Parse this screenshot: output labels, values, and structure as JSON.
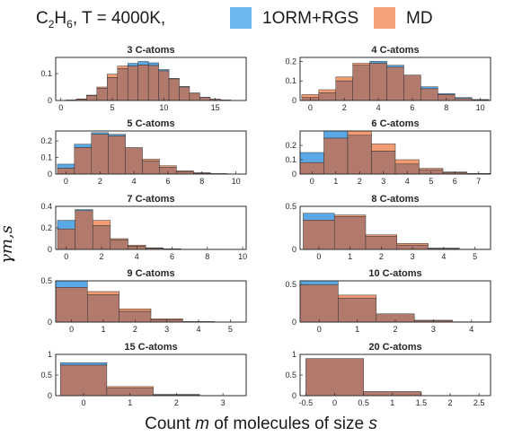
{
  "figure": {
    "header_prefix": "C",
    "header_sub": "2",
    "header_rest": "H",
    "header_sub2": "6",
    "header_temp": ", T = 4000K,",
    "xlabel_pre": "Count ",
    "xlabel_m": "m",
    "xlabel_post": " of molecules of size ",
    "xlabel_s": "s",
    "ylabel": "γm,s",
    "colors": {
      "rgs": "#5aa9e6",
      "md": "#f19c72",
      "overlap": "#b17a6c",
      "edge": "#333333"
    }
  },
  "legend": [
    {
      "name": "1ORM+RGS",
      "color": "#6bb8f0"
    },
    {
      "name": "MD",
      "color": "#f3a17a"
    }
  ],
  "chart_data": [
    {
      "type": "bar",
      "title": "3 C-atoms",
      "x": [
        1,
        2,
        3,
        4,
        5,
        6,
        7,
        8,
        9,
        10,
        11,
        12,
        13,
        14,
        15,
        16
      ],
      "series": [
        {
          "name": "1ORM+RGS",
          "values": [
            0.002,
            0.005,
            0.018,
            0.045,
            0.085,
            0.118,
            0.138,
            0.145,
            0.14,
            0.115,
            0.082,
            0.052,
            0.028,
            0.012,
            0.005,
            0.002
          ]
        },
        {
          "name": "MD",
          "values": [
            0.002,
            0.006,
            0.02,
            0.05,
            0.098,
            0.128,
            0.128,
            0.132,
            0.13,
            0.11,
            0.08,
            0.05,
            0.027,
            0.011,
            0.004,
            0.001
          ]
        }
      ],
      "xlim": [
        -0.5,
        18
      ],
      "ylim": [
        0,
        0.16
      ],
      "xticks": [
        0,
        5,
        10,
        15
      ],
      "yticks": [
        0,
        0.1
      ],
      "yticklabels": [
        "0",
        "0.1"
      ]
    },
    {
      "type": "bar",
      "title": "4 C-atoms",
      "x": [
        0,
        1,
        2,
        3,
        4,
        5,
        6,
        7,
        8,
        9,
        10
      ],
      "series": [
        {
          "name": "1ORM+RGS",
          "values": [
            0.015,
            0.04,
            0.1,
            0.18,
            0.2,
            0.18,
            0.13,
            0.07,
            0.035,
            0.015,
            0.005
          ]
        },
        {
          "name": "MD",
          "values": [
            0.03,
            0.055,
            0.12,
            0.19,
            0.19,
            0.17,
            0.13,
            0.06,
            0.03,
            0.01,
            0.003
          ]
        }
      ],
      "xlim": [
        -0.6,
        10.6
      ],
      "ylim": [
        0,
        0.22
      ],
      "xticks": [
        0,
        2,
        4,
        6,
        8,
        10
      ],
      "yticks": [
        0,
        0.1,
        0.2
      ],
      "yticklabels": [
        "0",
        "0.1",
        "0.2"
      ]
    },
    {
      "type": "bar",
      "title": "5 C-atoms",
      "x": [
        0,
        1,
        2,
        3,
        4,
        5,
        6,
        7,
        8,
        9,
        10
      ],
      "series": [
        {
          "name": "1ORM+RGS",
          "values": [
            0.06,
            0.18,
            0.25,
            0.24,
            0.16,
            0.08,
            0.04,
            0.015,
            0.005,
            0.002,
            0.001
          ]
        },
        {
          "name": "MD",
          "values": [
            0.035,
            0.16,
            0.24,
            0.23,
            0.16,
            0.09,
            0.05,
            0.02,
            0.008,
            0.003,
            0.001
          ]
        }
      ],
      "xlim": [
        -0.6,
        10.6
      ],
      "ylim": [
        0,
        0.26
      ],
      "xticks": [
        0,
        2,
        4,
        6,
        8,
        10
      ],
      "yticks": [
        0,
        0.1,
        0.2
      ],
      "yticklabels": [
        "0",
        "0.1",
        "0.2"
      ]
    },
    {
      "type": "bar",
      "title": "6 C-atoms",
      "x": [
        0,
        1,
        2,
        3,
        4,
        5,
        6,
        7
      ],
      "series": [
        {
          "name": "1ORM+RGS",
          "values": [
            0.15,
            0.3,
            0.27,
            0.16,
            0.07,
            0.03,
            0.01,
            0.003
          ]
        },
        {
          "name": "MD",
          "values": [
            0.08,
            0.25,
            0.3,
            0.21,
            0.1,
            0.04,
            0.015,
            0.004
          ]
        }
      ],
      "xlim": [
        -0.5,
        7.5
      ],
      "ylim": [
        0,
        0.3
      ],
      "xticks": [
        0,
        1,
        2,
        3,
        4,
        5,
        6,
        7
      ],
      "yticks": [
        0,
        0.1,
        0.2
      ],
      "yticklabels": [
        "0",
        "0.1",
        "0.2"
      ]
    },
    {
      "type": "bar",
      "title": "7 C-atoms",
      "x": [
        0,
        1,
        2,
        3,
        4,
        5,
        6,
        7,
        8,
        9,
        10
      ],
      "series": [
        {
          "name": "1ORM+RGS",
          "values": [
            0.27,
            0.37,
            0.22,
            0.09,
            0.03,
            0.01,
            0.005,
            0.002,
            0.001,
            0,
            0
          ]
        },
        {
          "name": "MD",
          "values": [
            0.19,
            0.36,
            0.27,
            0.1,
            0.04,
            0.015,
            0.006,
            0.002,
            0.001,
            0,
            0
          ]
        }
      ],
      "xlim": [
        -0.6,
        10.2
      ],
      "ylim": [
        0,
        0.4
      ],
      "xticks": [
        0,
        2,
        4,
        6,
        8,
        10
      ],
      "yticks": [
        0,
        0.2,
        0.4
      ],
      "yticklabels": [
        "0",
        "0.2",
        "0.4"
      ]
    },
    {
      "type": "bar",
      "title": "8 C-atoms",
      "x": [
        0,
        1,
        2,
        3,
        4,
        5
      ],
      "series": [
        {
          "name": "1ORM+RGS",
          "values": [
            0.42,
            0.38,
            0.15,
            0.05,
            0.01,
            0.002
          ]
        },
        {
          "name": "MD",
          "values": [
            0.34,
            0.4,
            0.17,
            0.07,
            0.015,
            0.003
          ]
        }
      ],
      "xlim": [
        -0.6,
        5.5
      ],
      "ylim": [
        0,
        0.5
      ],
      "xticks": [
        0,
        1,
        2,
        3,
        4,
        5
      ],
      "yticks": [
        0,
        0.5
      ],
      "yticklabels": [
        "0",
        "0.5"
      ]
    },
    {
      "type": "bar",
      "title": "9 C-atoms",
      "x": [
        0,
        1,
        2,
        3,
        4,
        5
      ],
      "series": [
        {
          "name": "1ORM+RGS",
          "values": [
            0.5,
            0.33,
            0.13,
            0.03,
            0.005,
            0.001
          ]
        },
        {
          "name": "MD",
          "values": [
            0.42,
            0.37,
            0.16,
            0.04,
            0.006,
            0.001
          ]
        }
      ],
      "xlim": [
        -0.5,
        5.5
      ],
      "ylim": [
        0,
        0.5
      ],
      "xticks": [
        0,
        1,
        2,
        3,
        4,
        5
      ],
      "yticks": [
        0,
        0.5
      ],
      "yticklabels": [
        "0",
        "0.5"
      ]
    },
    {
      "type": "bar",
      "title": "10 C-atoms",
      "x": [
        0,
        1,
        2,
        3,
        4
      ],
      "series": [
        {
          "name": "1ORM+RGS",
          "values": [
            0.55,
            0.32,
            0.11,
            0.02,
            0.003
          ]
        },
        {
          "name": "MD",
          "values": [
            0.5,
            0.36,
            0.11,
            0.025,
            0.004
          ]
        }
      ],
      "xlim": [
        -0.5,
        4.5
      ],
      "ylim": [
        0,
        0.55
      ],
      "xticks": [
        0,
        1,
        2,
        3,
        4
      ],
      "yticks": [
        0,
        0.5
      ],
      "yticklabels": [
        "0",
        "0.5"
      ]
    },
    {
      "type": "bar",
      "title": "15 C-atoms",
      "x": [
        0,
        1,
        2,
        3
      ],
      "series": [
        {
          "name": "1ORM+RGS",
          "values": [
            0.8,
            0.18,
            0.02,
            0.002
          ]
        },
        {
          "name": "MD",
          "values": [
            0.74,
            0.22,
            0.03,
            0.003
          ]
        }
      ],
      "xlim": [
        -0.6,
        3.5
      ],
      "ylim": [
        0,
        1
      ],
      "xticks": [
        0,
        1,
        2,
        3
      ],
      "yticks": [
        0,
        0.5,
        1
      ],
      "yticklabels": [
        "0",
        "0.5",
        "1"
      ]
    },
    {
      "type": "bar",
      "title": "20 C-atoms",
      "x": [
        0,
        1
      ],
      "series": [
        {
          "name": "1ORM+RGS",
          "values": [
            0.9,
            0.1
          ]
        },
        {
          "name": "MD",
          "values": [
            0.9,
            0.1
          ]
        }
      ],
      "xlim": [
        -0.6,
        2.7
      ],
      "ylim": [
        0,
        1
      ],
      "xticks": [
        -0.5,
        0,
        0.5,
        1,
        1.5,
        2,
        2.5
      ],
      "xticklabels": [
        "-0.5",
        "0",
        "0.5",
        "1",
        "1.5",
        "2",
        "2.5"
      ],
      "yticks": [
        0,
        0.5,
        1
      ],
      "yticklabels": [
        "0",
        "0.5",
        "1"
      ]
    }
  ]
}
